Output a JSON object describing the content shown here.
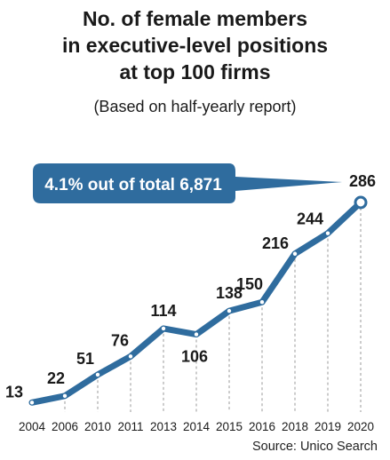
{
  "title_lines": [
    "No. of female members",
    "in executive-level positions",
    "at top 100 firms"
  ],
  "subtitle": "(Based on half-yearly report)",
  "source": "Source: Unico Search",
  "colors": {
    "line": "#2f6c9e",
    "bubble": "#2f6c9e",
    "text": "#1a1a1a"
  },
  "chart_data": {
    "type": "line",
    "title": "No. of female members in executive-level positions at top 100 firms",
    "subtitle": "(Based on half-yearly report)",
    "categories": [
      "2004",
      "2006",
      "2010",
      "2011",
      "2013",
      "2014",
      "2015",
      "2016",
      "2018",
      "2019",
      "2020"
    ],
    "series": [
      {
        "values": [
          13,
          22,
          51,
          76,
          114,
          106,
          138,
          150,
          216,
          244,
          286
        ]
      }
    ],
    "data_labels": [
      "13",
      "22",
      "51",
      "76",
      "114",
      "106",
      "138",
      "150",
      "216",
      "244",
      "286"
    ],
    "ylim": [
      0,
      300
    ],
    "grid": "vertical dashed guides",
    "annotation": "4.1% out of total 6,871"
  }
}
